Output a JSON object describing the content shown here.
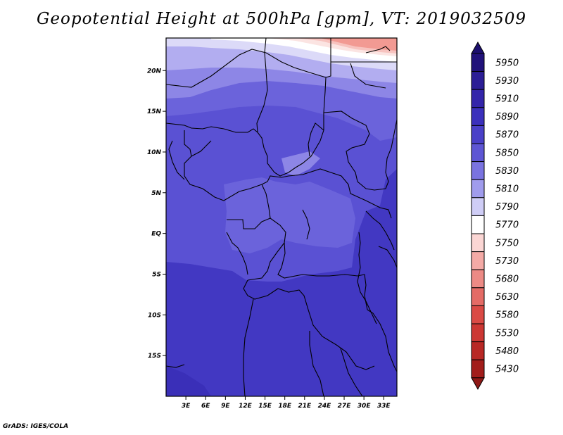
{
  "title": "Geopotential Height at 500hPa [gpm], VT: 2019032509",
  "credit": "GrADS: IGES/COLA",
  "map": {
    "lon_range": [
      0,
      35
    ],
    "lat_range": [
      -20,
      24
    ],
    "lat_ticks": [
      {
        "value": 20,
        "label": "20N"
      },
      {
        "value": 15,
        "label": "15N"
      },
      {
        "value": 10,
        "label": "10N"
      },
      {
        "value": 5,
        "label": "5N"
      },
      {
        "value": 0,
        "label": "EQ"
      },
      {
        "value": -5,
        "label": "5S"
      },
      {
        "value": -10,
        "label": "10S"
      },
      {
        "value": -15,
        "label": "15S"
      }
    ],
    "lon_ticks": [
      {
        "value": 3,
        "label": "3E"
      },
      {
        "value": 6,
        "label": "6E"
      },
      {
        "value": 9,
        "label": "9E"
      },
      {
        "value": 12,
        "label": "12E"
      },
      {
        "value": 15,
        "label": "15E"
      },
      {
        "value": 18,
        "label": "18E"
      },
      {
        "value": 21,
        "label": "21E"
      },
      {
        "value": 24,
        "label": "24E"
      },
      {
        "value": 27,
        "label": "27E"
      },
      {
        "value": 30,
        "label": "30E"
      },
      {
        "value": 33,
        "label": "33E"
      }
    ]
  },
  "colorbar": {
    "levels": [
      {
        "label": "5950",
        "color": "#21127a"
      },
      {
        "label": "5930",
        "color": "#2c1e96"
      },
      {
        "label": "5910",
        "color": "#3325aa"
      },
      {
        "label": "5890",
        "color": "#3b30bc"
      },
      {
        "label": "5870",
        "color": "#4a40c8"
      },
      {
        "label": "5850",
        "color": "#5e56d4"
      },
      {
        "label": "5830",
        "color": "#7a73e0"
      },
      {
        "label": "5810",
        "color": "#a09ced"
      },
      {
        "label": "5790",
        "color": "#cfcdf6"
      },
      {
        "label": "5770",
        "color": "#ffffff"
      },
      {
        "label": "5750",
        "color": "#fbd6d4"
      },
      {
        "label": "5730",
        "color": "#f4aaa6"
      },
      {
        "label": "5680",
        "color": "#ec8a85"
      },
      {
        "label": "5630",
        "color": "#e46b66"
      },
      {
        "label": "5580",
        "color": "#da4a45"
      },
      {
        "label": "5530",
        "color": "#cc3733"
      },
      {
        "label": "5480",
        "color": "#b82825"
      },
      {
        "label": "5430",
        "color": "#a21d1b"
      }
    ],
    "top_color": "#1c0f6e",
    "bottom_color": "#8e1816"
  },
  "field_colors": {
    "very_low": "#f29a93",
    "low": "#f7c3bf",
    "lowish": "#fbe4e2",
    "mid_white": "#ffffff",
    "pale_blue": "#dcdaf8",
    "light_blue": "#b2adf0",
    "lightish": "#8d86e6",
    "mid": "#6b63db",
    "main": "#5a51d3",
    "darker": "#4d44ca",
    "dark": "#4238c2",
    "deep": "#3a2fb8"
  }
}
